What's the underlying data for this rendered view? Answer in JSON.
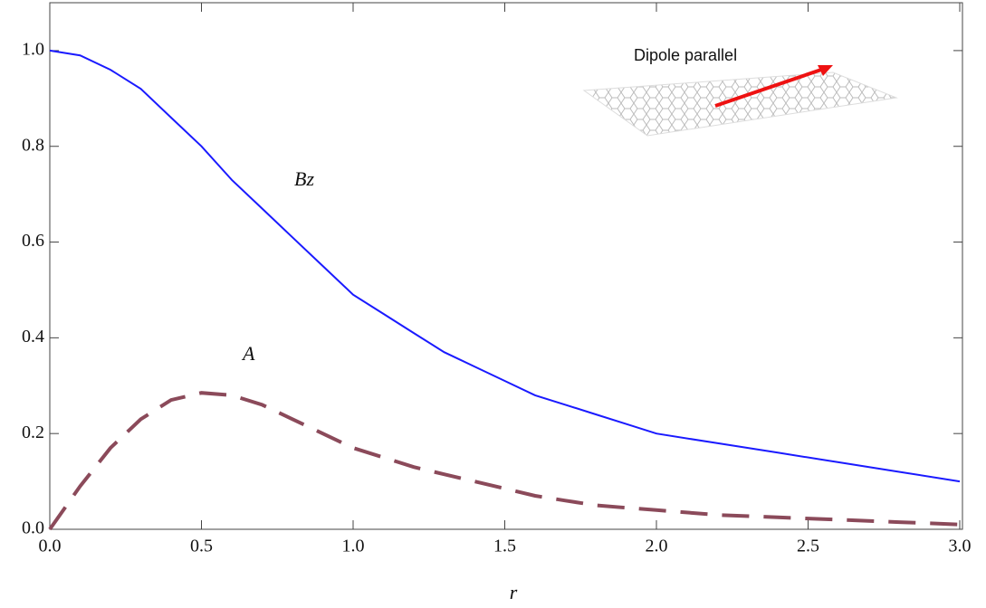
{
  "chart_data": {
    "type": "line",
    "x_label": "r",
    "annotations": [
      "Dipole parallel"
    ],
    "x": [
      0,
      0.1,
      0.2,
      0.3,
      0.4,
      0.5,
      0.6,
      0.7,
      0.8,
      0.9,
      1.0,
      1.1,
      1.2,
      1.3,
      1.4,
      1.5,
      1.6,
      1.7,
      1.8,
      1.9,
      2.0,
      2.2,
      2.4,
      2.6,
      2.8,
      3.0
    ],
    "series": [
      {
        "name": "Bz",
        "color": "#1a1aff",
        "dashed": false,
        "values": [
          1.0,
          0.99,
          0.96,
          0.92,
          0.86,
          0.8,
          0.73,
          0.67,
          0.61,
          0.55,
          0.49,
          0.45,
          0.41,
          0.37,
          0.34,
          0.31,
          0.28,
          0.26,
          0.24,
          0.22,
          0.2,
          0.18,
          0.16,
          0.14,
          0.12,
          0.1
        ]
      },
      {
        "name": "A",
        "color": "#8b4a5a",
        "dashed": true,
        "values": [
          0,
          0.09,
          0.17,
          0.23,
          0.27,
          0.285,
          0.28,
          0.26,
          0.23,
          0.2,
          0.17,
          0.15,
          0.13,
          0.115,
          0.1,
          0.085,
          0.07,
          0.06,
          0.05,
          0.045,
          0.04,
          0.03,
          0.025,
          0.02,
          0.015,
          0.01
        ]
      }
    ],
    "xlim": [
      0,
      3.0
    ],
    "ylim": [
      0,
      1.1
    ],
    "xticks": [
      {
        "value": 0,
        "label": "0.0"
      },
      0.5,
      {
        "value": 1,
        "label": "1.0"
      },
      1.5,
      {
        "value": 2,
        "label": "2.0"
      },
      2.5,
      {
        "value": 3,
        "label": "3.0"
      }
    ],
    "yticks": [
      {
        "value": 0,
        "label": "0.0"
      },
      0.2,
      0.4,
      0.6,
      0.8,
      {
        "value": 1,
        "label": "1.0"
      }
    ]
  }
}
